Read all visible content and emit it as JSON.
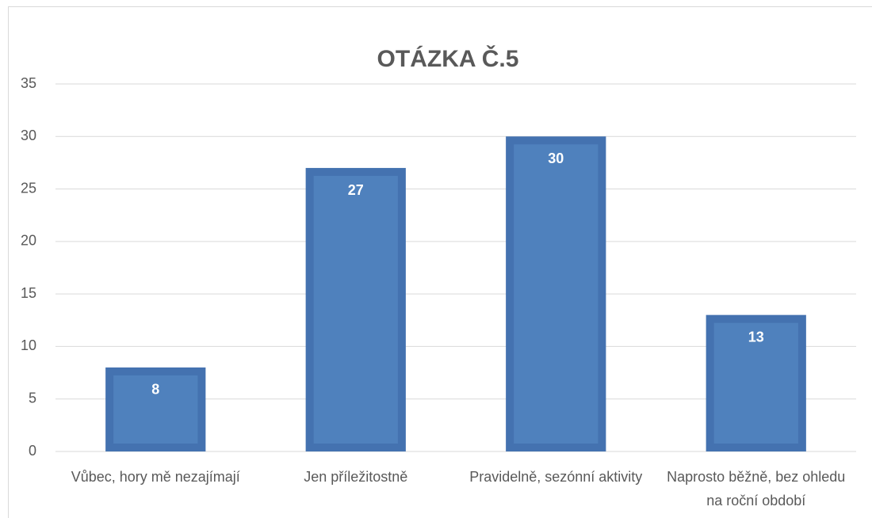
{
  "chart_data": {
    "type": "bar",
    "title": "OTÁZKA Č.5",
    "categories": [
      "Vůbec, hory mě nezajímají",
      "Jen příležitostně",
      "Pravidelně, sezónní aktivity",
      "Naprosto běžně, bez ohledu na roční období"
    ],
    "values": [
      8,
      27,
      30,
      13
    ],
    "color": "#4f81bd",
    "ylim": [
      0,
      35
    ],
    "yticks": [
      0,
      5,
      10,
      15,
      20,
      25,
      30,
      35
    ],
    "grid": true
  }
}
